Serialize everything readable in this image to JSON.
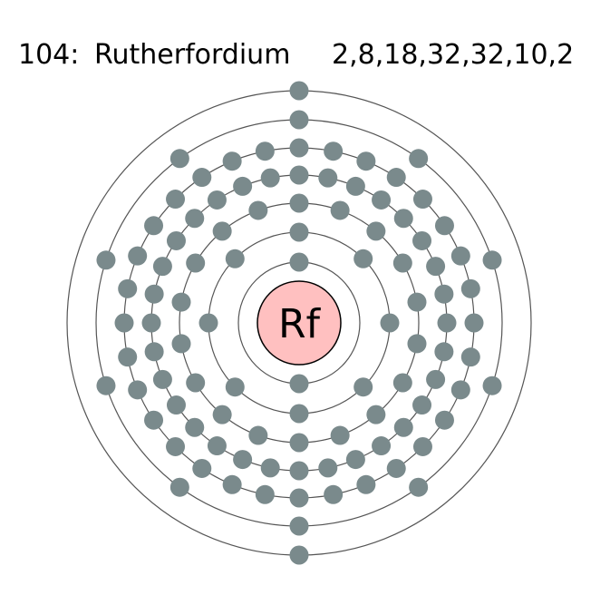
{
  "header": {
    "atomic_number_label": "104:",
    "element_name": "Rutherfordium",
    "configuration": "2,8,18,32,32,10,2"
  },
  "nucleus": {
    "symbol": "Rf",
    "fill_color": "#ffc0c0",
    "stroke_color": "#000000"
  },
  "shells": {
    "electron_counts": [
      2,
      8,
      18,
      32,
      32,
      10,
      2
    ],
    "ring_color": "#555555",
    "electron_color": "#7a8a8c"
  }
}
